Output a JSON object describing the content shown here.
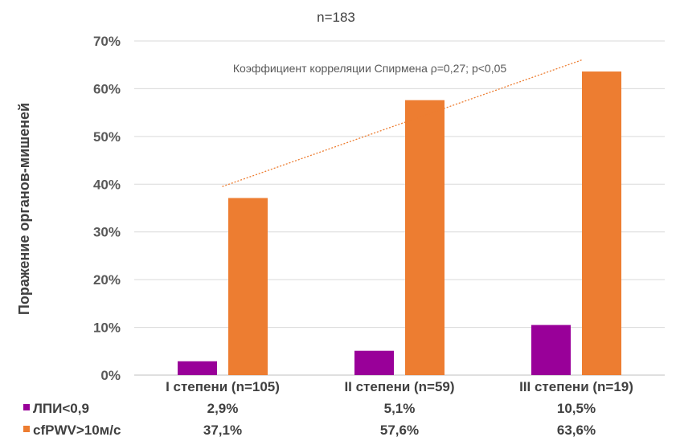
{
  "chart_data": {
    "type": "bar",
    "subtitle": "n=183",
    "ylabel": "Поражение органов-мишеней",
    "ylim": [
      0,
      70
    ],
    "yticks": [
      "0%",
      "10%",
      "20%",
      "30%",
      "40%",
      "50%",
      "60%",
      "70%"
    ],
    "categories": [
      "I степени (n=105)",
      "II степени (n=59)",
      "III степени (n=19)"
    ],
    "series": [
      {
        "name": "ЛПИ<0,9",
        "values": [
          2.9,
          5.1,
          10.5
        ],
        "labels": [
          "2,9%",
          "5,1%",
          "10,5%"
        ],
        "color": "#990099"
      },
      {
        "name": "cfPWV>10м/с",
        "values": [
          37.1,
          57.6,
          63.6
        ],
        "labels": [
          "37,1%",
          "57,6%",
          "63,6%"
        ],
        "color": "#ED7D31"
      }
    ],
    "annotation": "Коэффициент корреляции Спирмена ρ=0,27; p<0,05",
    "trendline": {
      "from": 39.5,
      "to": 66.0,
      "color": "#ED7D31",
      "style": "dotted"
    },
    "grid": true,
    "legend": "bottom-left data table"
  }
}
